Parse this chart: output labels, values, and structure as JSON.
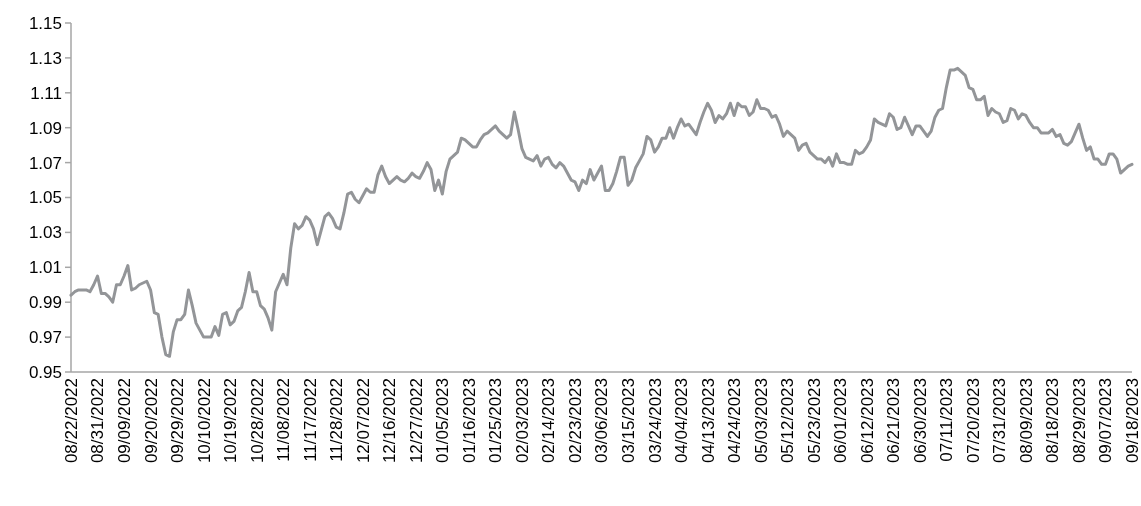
{
  "chart_data": {
    "type": "line",
    "categories": [
      "08/22/2022",
      null,
      null,
      null,
      null,
      null,
      null,
      "08/31/2022",
      null,
      null,
      null,
      null,
      null,
      null,
      "09/09/2022",
      null,
      null,
      null,
      null,
      null,
      null,
      "09/20/2022",
      null,
      null,
      null,
      null,
      null,
      null,
      "09/29/2022",
      null,
      null,
      null,
      null,
      null,
      null,
      "10/10/2022",
      null,
      null,
      null,
      null,
      null,
      null,
      "10/19/2022",
      null,
      null,
      null,
      null,
      null,
      null,
      "10/28/2022",
      null,
      null,
      null,
      null,
      null,
      null,
      "11/08/2022",
      null,
      null,
      null,
      null,
      null,
      null,
      "11/17/2022",
      null,
      null,
      null,
      null,
      null,
      null,
      "11/28/2022",
      null,
      null,
      null,
      null,
      null,
      null,
      "12/07/2022",
      null,
      null,
      null,
      null,
      null,
      null,
      "12/16/2022",
      null,
      null,
      null,
      null,
      null,
      null,
      "12/27/2022",
      null,
      null,
      null,
      null,
      null,
      null,
      "01/05/2023",
      null,
      null,
      null,
      null,
      null,
      null,
      "01/16/2023",
      null,
      null,
      null,
      null,
      null,
      null,
      "01/25/2023",
      null,
      null,
      null,
      null,
      null,
      null,
      "02/03/2023",
      null,
      null,
      null,
      null,
      null,
      null,
      "02/14/2023",
      null,
      null,
      null,
      null,
      null,
      null,
      "02/23/2023",
      null,
      null,
      null,
      null,
      null,
      null,
      "03/06/2023",
      null,
      null,
      null,
      null,
      null,
      null,
      "03/15/2023",
      null,
      null,
      null,
      null,
      null,
      null,
      "03/24/2023",
      null,
      null,
      null,
      null,
      null,
      null,
      "04/04/2023",
      null,
      null,
      null,
      null,
      null,
      null,
      "04/13/2023",
      null,
      null,
      null,
      null,
      null,
      null,
      "04/24/2023",
      null,
      null,
      null,
      null,
      null,
      null,
      "05/03/2023",
      null,
      null,
      null,
      null,
      null,
      null,
      "05/12/2023",
      null,
      null,
      null,
      null,
      null,
      null,
      "05/23/2023",
      null,
      null,
      null,
      null,
      null,
      null,
      "06/01/2023",
      null,
      null,
      null,
      null,
      null,
      null,
      "06/12/2023",
      null,
      null,
      null,
      null,
      null,
      null,
      "06/21/2023",
      null,
      null,
      null,
      null,
      null,
      null,
      "06/30/2023",
      null,
      null,
      null,
      null,
      null,
      null,
      "07/11/2023",
      null,
      null,
      null,
      null,
      null,
      null,
      "07/20/2023",
      null,
      null,
      null,
      null,
      null,
      null,
      "07/31/2023",
      null,
      null,
      null,
      null,
      null,
      null,
      "08/09/2023",
      null,
      null,
      null,
      null,
      null,
      null,
      "08/18/2023",
      null,
      null,
      null,
      null,
      null,
      null,
      "08/29/2023",
      null,
      null,
      null,
      null,
      null,
      null,
      "09/07/2023",
      null,
      null,
      null,
      null,
      null,
      null,
      "09/18/2023"
    ],
    "series": [
      {
        "color": "#939598",
        "values": [
          0.994,
          0.996,
          0.997,
          0.997,
          0.997,
          0.996,
          1.0,
          1.005,
          0.995,
          0.995,
          0.993,
          0.99,
          1.0,
          1.0,
          1.005,
          1.011,
          0.997,
          0.998,
          1.0,
          1.001,
          1.002,
          0.997,
          0.984,
          0.983,
          0.97,
          0.96,
          0.959,
          0.973,
          0.98,
          0.98,
          0.983,
          0.997,
          0.988,
          0.978,
          0.974,
          0.97,
          0.97,
          0.97,
          0.976,
          0.971,
          0.983,
          0.984,
          0.977,
          0.979,
          0.985,
          0.987,
          0.996,
          1.007,
          0.996,
          0.996,
          0.988,
          0.986,
          0.981,
          0.974,
          0.996,
          1.001,
          1.006,
          1.0,
          1.021,
          1.035,
          1.032,
          1.034,
          1.039,
          1.037,
          1.032,
          1.023,
          1.031,
          1.039,
          1.041,
          1.038,
          1.033,
          1.032,
          1.041,
          1.052,
          1.053,
          1.049,
          1.047,
          1.051,
          1.055,
          1.053,
          1.053,
          1.063,
          1.068,
          1.062,
          1.058,
          1.06,
          1.062,
          1.06,
          1.059,
          1.061,
          1.064,
          1.062,
          1.061,
          1.065,
          1.07,
          1.066,
          1.054,
          1.06,
          1.052,
          1.065,
          1.072,
          1.074,
          1.076,
          1.084,
          1.083,
          1.081,
          1.079,
          1.079,
          1.083,
          1.086,
          1.087,
          1.089,
          1.091,
          1.088,
          1.086,
          1.084,
          1.086,
          1.099,
          1.089,
          1.078,
          1.073,
          1.072,
          1.071,
          1.074,
          1.068,
          1.072,
          1.073,
          1.069,
          1.067,
          1.07,
          1.068,
          1.064,
          1.06,
          1.059,
          1.054,
          1.06,
          1.058,
          1.066,
          1.06,
          1.064,
          1.068,
          1.054,
          1.054,
          1.058,
          1.065,
          1.073,
          1.073,
          1.057,
          1.06,
          1.067,
          1.071,
          1.075,
          1.085,
          1.083,
          1.076,
          1.079,
          1.084,
          1.084,
          1.09,
          1.084,
          1.09,
          1.095,
          1.091,
          1.092,
          1.089,
          1.086,
          1.093,
          1.099,
          1.104,
          1.1,
          1.093,
          1.097,
          1.095,
          1.098,
          1.104,
          1.097,
          1.104,
          1.102,
          1.102,
          1.097,
          1.099,
          1.106,
          1.101,
          1.101,
          1.1,
          1.096,
          1.097,
          1.092,
          1.085,
          1.088,
          1.086,
          1.084,
          1.077,
          1.08,
          1.081,
          1.076,
          1.074,
          1.072,
          1.072,
          1.07,
          1.073,
          1.068,
          1.075,
          1.07,
          1.07,
          1.069,
          1.069,
          1.077,
          1.075,
          1.076,
          1.079,
          1.083,
          1.095,
          1.093,
          1.092,
          1.091,
          1.098,
          1.096,
          1.089,
          1.09,
          1.096,
          1.091,
          1.086,
          1.091,
          1.091,
          1.088,
          1.085,
          1.088,
          1.096,
          1.1,
          1.101,
          1.113,
          1.123,
          1.123,
          1.124,
          1.122,
          1.12,
          1.113,
          1.112,
          1.106,
          1.106,
          1.108,
          1.097,
          1.101,
          1.099,
          1.098,
          1.093,
          1.094,
          1.101,
          1.1,
          1.095,
          1.098,
          1.097,
          1.093,
          1.09,
          1.09,
          1.087,
          1.087,
          1.087,
          1.089,
          1.085,
          1.086,
          1.081,
          1.08,
          1.082,
          1.087,
          1.092,
          1.084,
          1.077,
          1.079,
          1.072,
          1.072,
          1.069,
          1.069,
          1.075,
          1.075,
          1.072,
          1.064,
          1.066,
          1.068,
          1.069
        ]
      }
    ],
    "ylim": [
      0.95,
      1.15
    ],
    "yticks": [
      0.95,
      0.97,
      0.99,
      1.01,
      1.03,
      1.05,
      1.07,
      1.09,
      1.11,
      1.13,
      1.15
    ],
    "grid": false
  }
}
